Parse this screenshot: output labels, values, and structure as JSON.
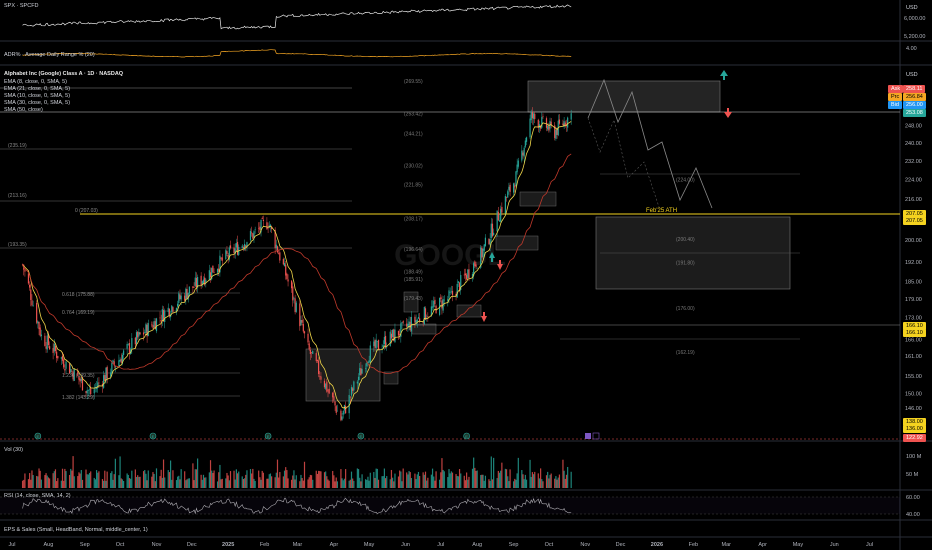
{
  "top_pane": {
    "symbol_label": "SPX · SPCFD",
    "currency": "USD",
    "ticks": [
      "6,000.00",
      "5,200.00"
    ]
  },
  "adr_pane": {
    "label": "ADR% · Average Daily Range % (20)",
    "tick": "4.00"
  },
  "main_pane": {
    "title": "Alphabet Inc (Google) Class A · 1D · NASDAQ",
    "indicators": [
      "EMA (8, close, 0, SMA, 5)",
      "EMA (21, close, 0, SMA, 5)",
      "SMA (10, close, 0, SMA, 5)",
      "SMA (30, close, 0, SMA, 5)",
      "SMA (50, close)"
    ],
    "currency": "USD",
    "watermark": "GOOGL",
    "quote": {
      "ask_label": "Ask",
      "ask": "258.11",
      "price_label": "Prc",
      "price": "256.84",
      "bid_label": "Bid",
      "bid": "256.00",
      "last": "253.08"
    },
    "level_badges": [
      "207.05",
      "207.05",
      "166.10",
      "166.10",
      "138.00",
      "136.00",
      "122.92"
    ],
    "annotation": "Feb'25 ATH",
    "fib_labels": {
      "f0": "0 (207.03)",
      "f618": "0.618 (175.88)",
      "f764": "0.764 (169.19)",
      "f1236": "1.236 (149.35)",
      "f1382": "1.382 (143.29)",
      "r235": "(235.19)",
      "r213": "(213.16)",
      "r193": "(193.35)"
    },
    "level_labels": [
      "(269.55)",
      "(253.42)",
      "(244.21)",
      "(230.02)",
      "(221.85)",
      "(208.17)",
      "(196.64)",
      "(188.49)",
      "(185.91)",
      "(179.43)",
      "(224.00)",
      "(200.40)",
      "(191.80)",
      "(176.00)",
      "(162.19)"
    ],
    "price_ticks": [
      "256.00",
      "248.00",
      "240.00",
      "232.00",
      "224.00",
      "216.00",
      "200.00",
      "192.00",
      "185.00",
      "179.00",
      "173.00",
      "166.00",
      "161.00",
      "155.00",
      "150.00",
      "146.00",
      "142.00"
    ],
    "events": [
      "E",
      "E",
      "E",
      "E",
      "E"
    ]
  },
  "volume_pane": {
    "label": "Vol (30)",
    "ticks": [
      "100 M",
      "50 M"
    ]
  },
  "rsi_pane": {
    "label": "RSI (14, close, SMA, 14, 2)",
    "ticks": [
      "60.00",
      "40.00"
    ]
  },
  "eps_pane": {
    "label": "EPS & Sales (Small, HeadBand, Normal, middle_center, 1)"
  },
  "time_axis": [
    "Jul",
    "Aug",
    "Sep",
    "Oct",
    "Nov",
    "Dec",
    "2025",
    "Feb",
    "Mar",
    "Apr",
    "May",
    "Jun",
    "Jul",
    "Aug",
    "Sep",
    "Oct",
    "Nov",
    "Dec",
    "2026",
    "Feb",
    "Mar",
    "Apr",
    "May",
    "Jun",
    "Jul"
  ],
  "colors": {
    "up": "#26a69a",
    "down": "#ef5350",
    "ema8": "#f0d64a",
    "sma50": "#c0392b",
    "spx_line": "#e8e8e8",
    "adr_line": "#f5a623",
    "rsi_line": "#b0b0b0",
    "yellow_badge": "#f5d31f"
  },
  "chart_data": {
    "type": "candlestick",
    "title": "Alphabet Inc (Google) Class A · 1D · NASDAQ",
    "ylim": [
      138,
      272
    ],
    "x_range": [
      "2024-07",
      "2026-07"
    ],
    "key_points": [
      {
        "date": "2024-07-10",
        "close": 191
      },
      {
        "date": "2024-07-26",
        "close": 167
      },
      {
        "date": "2024-09-06",
        "close": 150
      },
      {
        "date": "2024-10-15",
        "close": 166
      },
      {
        "date": "2024-12-10",
        "close": 186
      },
      {
        "date": "2025-02-04",
        "close": 207
      },
      {
        "date": "2025-03-10",
        "close": 163
      },
      {
        "date": "2025-04-07",
        "close": 143
      },
      {
        "date": "2025-05-01",
        "close": 162
      },
      {
        "date": "2025-06-02",
        "close": 170
      },
      {
        "date": "2025-07-10",
        "close": 180
      },
      {
        "date": "2025-08-05",
        "close": 195
      },
      {
        "date": "2025-09-03",
        "close": 225
      },
      {
        "date": "2025-09-16",
        "close": 252
      },
      {
        "date": "2025-10-06",
        "close": 245
      },
      {
        "date": "2025-10-20",
        "close": 253
      }
    ],
    "horizontal_levels": [
      207.05,
      166.1,
      138.0,
      136.0,
      122.92
    ],
    "supply_zone": [
      253.42,
      269.55
    ],
    "demand_zone": [
      176.0,
      207.05
    ],
    "spx": {
      "ylim": [
        4800,
        6800
      ],
      "start": 5550,
      "end": 6700
    },
    "volume_ylim_M": [
      0,
      110
    ],
    "rsi": {
      "ylim": [
        30,
        70
      ],
      "last": 53
    }
  }
}
